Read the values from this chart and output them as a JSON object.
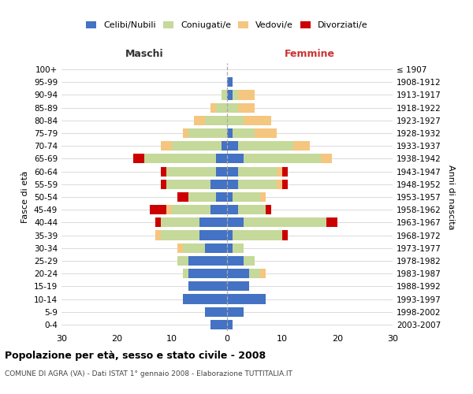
{
  "age_groups": [
    "0-4",
    "5-9",
    "10-14",
    "15-19",
    "20-24",
    "25-29",
    "30-34",
    "35-39",
    "40-44",
    "45-49",
    "50-54",
    "55-59",
    "60-64",
    "65-69",
    "70-74",
    "75-79",
    "80-84",
    "85-89",
    "90-94",
    "95-99",
    "100+"
  ],
  "birth_years": [
    "2003-2007",
    "1998-2002",
    "1993-1997",
    "1988-1992",
    "1983-1987",
    "1978-1982",
    "1973-1977",
    "1968-1972",
    "1963-1967",
    "1958-1962",
    "1953-1957",
    "1948-1952",
    "1943-1947",
    "1938-1942",
    "1933-1937",
    "1928-1932",
    "1923-1927",
    "1918-1922",
    "1913-1917",
    "1908-1912",
    "≤ 1907"
  ],
  "males": {
    "celibi": [
      3,
      4,
      8,
      7,
      7,
      7,
      4,
      5,
      5,
      3,
      2,
      3,
      2,
      2,
      1,
      0,
      0,
      0,
      0,
      0,
      0
    ],
    "coniugati": [
      0,
      0,
      0,
      0,
      1,
      2,
      4,
      7,
      7,
      7,
      5,
      8,
      9,
      13,
      9,
      7,
      4,
      2,
      1,
      0,
      0
    ],
    "vedovi": [
      0,
      0,
      0,
      0,
      0,
      0,
      1,
      1,
      0,
      1,
      0,
      0,
      0,
      0,
      2,
      1,
      2,
      1,
      0,
      0,
      0
    ],
    "divorziati": [
      0,
      0,
      0,
      0,
      0,
      0,
      0,
      0,
      1,
      3,
      2,
      1,
      1,
      2,
      0,
      0,
      0,
      0,
      0,
      0,
      0
    ]
  },
  "females": {
    "nubili": [
      1,
      3,
      7,
      4,
      4,
      3,
      1,
      1,
      3,
      2,
      1,
      2,
      2,
      3,
      2,
      1,
      0,
      0,
      1,
      1,
      0
    ],
    "coniugate": [
      0,
      0,
      0,
      0,
      2,
      2,
      2,
      9,
      15,
      5,
      5,
      7,
      7,
      14,
      10,
      4,
      3,
      2,
      1,
      0,
      0
    ],
    "vedove": [
      0,
      0,
      0,
      0,
      1,
      0,
      0,
      0,
      0,
      0,
      1,
      1,
      1,
      2,
      3,
      4,
      5,
      3,
      3,
      0,
      0
    ],
    "divorziate": [
      0,
      0,
      0,
      0,
      0,
      0,
      0,
      1,
      2,
      1,
      0,
      1,
      1,
      0,
      0,
      0,
      0,
      0,
      0,
      0,
      0
    ]
  },
  "colors": {
    "celibi_nubili": "#4472c4",
    "coniugati_e": "#c5d99a",
    "vedovi_e": "#f5c67f",
    "divorziati_e": "#cc0000"
  },
  "title": "Popolazione per età, sesso e stato civile - 2008",
  "subtitle": "COMUNE DI AGRA (VA) - Dati ISTAT 1° gennaio 2008 - Elaborazione TUTTITALIA.IT",
  "label_maschi": "Maschi",
  "label_femmine": "Femmine",
  "ylabel_left": "Fasce di età",
  "ylabel_right": "Anni di nascita",
  "legend_labels": [
    "Celibi/Nubili",
    "Coniugati/e",
    "Vedovi/e",
    "Divorziati/e"
  ],
  "xlim": 30,
  "background_color": "#ffffff",
  "grid_color": "#cccccc"
}
